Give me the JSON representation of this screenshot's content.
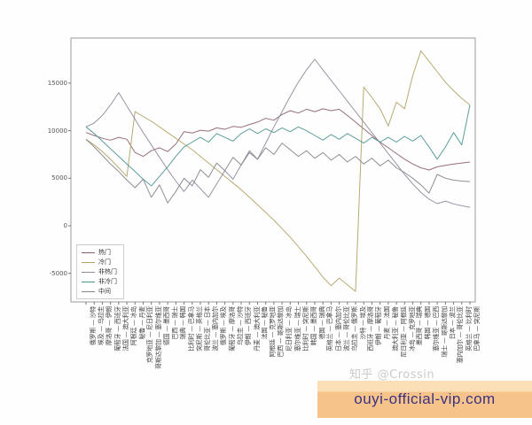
{
  "watermark": "知乎 @Crossin",
  "promo_banner": {
    "text": "ouyi-official-vip.com",
    "bg": "#f6c48a",
    "bg_top": "#fbdfb7",
    "text_color": "#3a3182"
  },
  "chart_data": {
    "type": "line",
    "title": "",
    "xlabel": "",
    "ylabel": "",
    "grid": false,
    "legend_position": "center-left",
    "ylim": [
      -7900,
      19800
    ],
    "yticks": [
      -5000,
      0,
      5000,
      10000,
      15000
    ],
    "categories": [
      "俄罗斯 — 沙特",
      "埃及 — 乌拉圭",
      "摩洛哥 — 伊朗",
      "葡萄牙 — 西班牙",
      "法国 — 澳大利亚",
      "阿根廷 — 冰岛",
      "秘鲁 — 丹麦",
      "克罗地亚 — 尼日利亚",
      "哥斯达黎加 — 塞尔维亚",
      "德国 — 墨西哥",
      "巴西 — 瑞士",
      "瑞典 — 韩国",
      "比利时 — 巴拿马",
      "突尼斯 — 英格兰",
      "哥伦比亚 — 日本",
      "波兰 — 塞内加尔",
      "俄罗斯 — 埃及",
      "葡萄牙 — 摩洛哥",
      "乌拉圭 — 沙特",
      "伊朗 — 西班牙",
      "丹麦 — 澳大利亚",
      "法国 — 秘鲁",
      "阿根廷 — 克罗地亚",
      "巴西 — 哥斯达黎加",
      "尼日利亚 — 冰岛",
      "塞尔维亚 — 瑞士",
      "比利时 — 突尼斯",
      "韩国 — 墨西哥",
      "德国 — 瑞典",
      "英格兰 — 巴拿马",
      "日本 — 塞内加尔",
      "波兰 — 哥伦比亚",
      "乌拉圭 — 俄罗斯",
      "沙特 — 埃及",
      "西班牙 — 摩洛哥",
      "伊朗 — 葡萄牙",
      "丹麦 — 法国",
      "澳大利亚 — 秘鲁",
      "尼日利亚 — 阿根廷",
      "冰岛 — 克罗地亚",
      "墨西哥 — 瑞典",
      "韩国 — 德国",
      "塞尔维亚 — 巴西",
      "瑞士 — 哥斯达黎加",
      "日本 — 波兰",
      "塞内加尔 — 哥伦比亚",
      "英格兰 — 比利时",
      "巴拿马 — 突尼斯"
    ],
    "series": [
      {
        "name": "热门",
        "color": "#8d5f6d",
        "values": [
          9800,
          9500,
          9200,
          9000,
          9300,
          9100,
          7700,
          7300,
          7900,
          8200,
          7800,
          8600,
          9900,
          9750,
          10050,
          9950,
          10300,
          10150,
          10450,
          10350,
          10650,
          10900,
          11300,
          11100,
          11700,
          12100,
          11850,
          12250,
          12000,
          12300,
          12100,
          12250,
          11600,
          10900,
          10200,
          9500,
          8800,
          8200,
          7600,
          7000,
          6500,
          6100,
          5870,
          6200,
          6350,
          6500,
          6600,
          6700
        ]
      },
      {
        "name": "冷门",
        "color": "#b0a264",
        "values": [
          9100,
          8500,
          7800,
          7000,
          6100,
          5200,
          12000,
          11500,
          11000,
          10400,
          9800,
          9200,
          8600,
          8000,
          7300,
          6600,
          5900,
          5200,
          4500,
          3800,
          3000,
          2200,
          1400,
          600,
          -300,
          -1200,
          -2200,
          -3200,
          -4300,
          -5400,
          -6300,
          -5500,
          -6200,
          -6900,
          14600,
          13500,
          12300,
          10500,
          13000,
          12300,
          15800,
          18400,
          17300,
          16200,
          15100,
          14200,
          13400,
          12700
        ]
      },
      {
        "name": "非热门",
        "color": "#8a8a9b",
        "values": [
          10400,
          10800,
          11600,
          12700,
          14000,
          12600,
          11200,
          9800,
          8500,
          7200,
          5900,
          4700,
          3600,
          4800,
          3900,
          3000,
          4400,
          5800,
          4900,
          6400,
          7900,
          7000,
          8700,
          10400,
          12000,
          13600,
          15100,
          16400,
          17500,
          16400,
          15300,
          14200,
          13100,
          12000,
          10900,
          9800,
          8700,
          7600,
          6500,
          5400,
          4400,
          3500,
          2800,
          2330,
          2600,
          2300,
          2100,
          1950
        ]
      },
      {
        "name": "非冷门",
        "color": "#4a9490",
        "values": [
          10400,
          9700,
          8900,
          8100,
          7300,
          6500,
          5700,
          4900,
          4200,
          5200,
          6200,
          7300,
          8300,
          8800,
          9300,
          8800,
          9700,
          9300,
          8900,
          9700,
          10200,
          9700,
          10200,
          9800,
          10300,
          9900,
          10400,
          10000,
          9500,
          9000,
          9600,
          9100,
          9700,
          9200,
          8700,
          9300,
          8800,
          9300,
          8800,
          9400,
          8900,
          9500,
          8300,
          7000,
          8300,
          9800,
          8500,
          12700
        ]
      },
      {
        "name": "中间",
        "color": "#83838b",
        "values": [
          9100,
          8300,
          7400,
          6500,
          5700,
          4800,
          4000,
          4900,
          3000,
          4300,
          2400,
          3600,
          5000,
          4200,
          5900,
          5100,
          6600,
          5800,
          7200,
          6400,
          7700,
          7000,
          8200,
          7500,
          8700,
          8000,
          7300,
          7900,
          7100,
          7700,
          6900,
          7500,
          6700,
          7300,
          6500,
          7100,
          6300,
          6900,
          6100,
          5600,
          5000,
          4300,
          3440,
          5400,
          5000,
          4800,
          4700,
          4650
        ]
      }
    ]
  }
}
